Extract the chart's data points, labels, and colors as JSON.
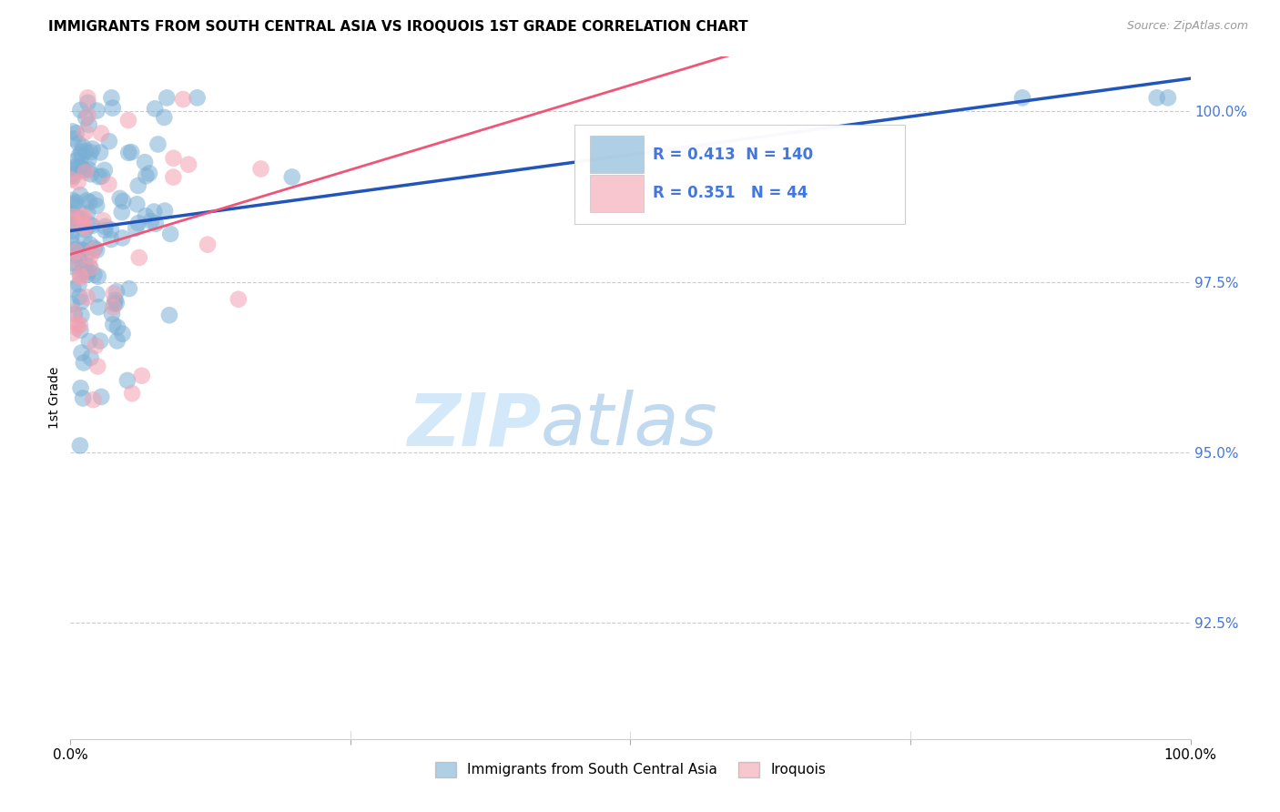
{
  "title": "IMMIGRANTS FROM SOUTH CENTRAL ASIA VS IROQUOIS 1ST GRADE CORRELATION CHART",
  "source": "Source: ZipAtlas.com",
  "ylabel": "1st Grade",
  "ytick_labels": [
    "100.0%",
    "97.5%",
    "95.0%",
    "92.5%"
  ],
  "ytick_values": [
    1.0,
    0.975,
    0.95,
    0.925
  ],
  "xlim": [
    0.0,
    1.0
  ],
  "ylim": [
    0.908,
    1.008
  ],
  "legend_label_blue": "Immigrants from South Central Asia",
  "legend_label_pink": "Iroquois",
  "r_blue": 0.413,
  "n_blue": 140,
  "r_pink": 0.351,
  "n_pink": 44,
  "color_blue": "#7BAFD4",
  "color_pink": "#F4A0B0",
  "color_blue_line": "#2255BB",
  "color_pink_line": "#EE5577",
  "color_right_axis": "#4477DD",
  "watermark_zip": "ZIP",
  "watermark_atlas": "atlas",
  "seed_blue": 77,
  "seed_pink": 33
}
